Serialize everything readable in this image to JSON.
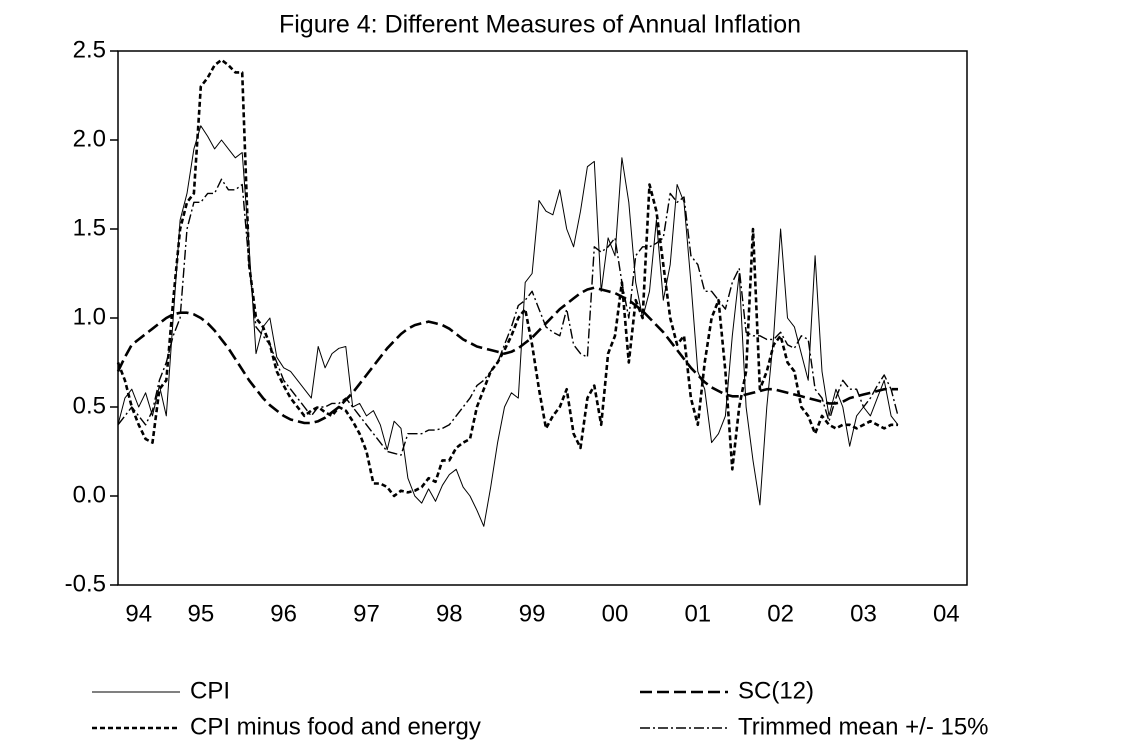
{
  "chart_data": {
    "type": "line",
    "title": "Figure 4: Different Measures of Annual Inflation",
    "categories": [
      null,
      null,
      null,
      "94",
      null,
      null,
      null,
      null,
      null,
      null,
      null,
      null,
      "95",
      null,
      null,
      null,
      null,
      null,
      null,
      null,
      null,
      null,
      null,
      null,
      "96",
      null,
      null,
      null,
      null,
      null,
      null,
      null,
      null,
      null,
      null,
      null,
      "97",
      null,
      null,
      null,
      null,
      null,
      null,
      null,
      null,
      null,
      null,
      null,
      "98",
      null,
      null,
      null,
      null,
      null,
      null,
      null,
      null,
      null,
      null,
      null,
      "99",
      null,
      null,
      null,
      null,
      null,
      null,
      null,
      null,
      null,
      null,
      null,
      "00",
      null,
      null,
      null,
      null,
      null,
      null,
      null,
      null,
      null,
      null,
      null,
      "01",
      null,
      null,
      null,
      null,
      null,
      null,
      null,
      null,
      null,
      null,
      null,
      "02",
      null,
      null,
      null,
      null,
      null,
      null,
      null,
      null,
      null,
      null,
      null,
      "03",
      null,
      null,
      null,
      null,
      null,
      null,
      null,
      null,
      null,
      null,
      null,
      "04",
      null,
      null,
      null
    ],
    "ylim": [
      -0.5,
      2.5
    ],
    "yticks": [
      -0.5,
      {
        "value": 0,
        "label": "0.0"
      },
      0.5,
      {
        "value": 1,
        "label": "1.0"
      },
      1.5,
      {
        "value": 2,
        "label": "2.0"
      },
      2.5
    ],
    "series": [
      {
        "name": "CPI",
        "color": "#000000",
        "style": "solid",
        "values": [
          0.4,
          0.55,
          0.6,
          0.5,
          0.58,
          0.45,
          0.62,
          0.45,
          1.0,
          1.55,
          1.7,
          1.95,
          2.08,
          2.02,
          1.95,
          2.0,
          1.95,
          1.9,
          1.93,
          1.4,
          0.8,
          0.95,
          1.0,
          0.78,
          0.72,
          0.7,
          0.65,
          0.6,
          0.55,
          0.84,
          0.72,
          0.8,
          0.83,
          0.84,
          0.5,
          0.52,
          0.45,
          0.48,
          0.4,
          0.26,
          0.42,
          0.38,
          0.1,
          0.0,
          -0.04,
          0.04,
          -0.03,
          0.06,
          0.12,
          0.15,
          0.05,
          0.0,
          -0.08,
          -0.17,
          0.05,
          0.3,
          0.5,
          0.58,
          0.55,
          1.2,
          1.25,
          1.66,
          1.6,
          1.58,
          1.72,
          1.5,
          1.4,
          1.6,
          1.85,
          1.88,
          1.15,
          1.45,
          1.35,
          1.9,
          1.65,
          1.2,
          1.0,
          1.15,
          1.55,
          1.1,
          1.3,
          1.75,
          1.65,
          1.2,
          0.7,
          0.6,
          0.3,
          0.35,
          0.45,
          0.9,
          1.25,
          0.5,
          0.2,
          -0.05,
          0.5,
          0.9,
          1.5,
          1.0,
          0.95,
          0.8,
          0.65,
          1.35,
          0.7,
          0.45,
          0.6,
          0.5,
          0.28,
          0.45,
          0.5,
          0.45,
          0.55,
          0.65,
          0.45,
          0.4,
          null,
          null,
          null,
          null,
          null,
          null,
          null,
          null,
          null,
          null
        ]
      },
      {
        "name": "SC(12)",
        "color": "#000000",
        "style": "long-dash",
        "values": [
          0.7,
          0.78,
          0.85,
          0.88,
          0.91,
          0.94,
          0.97,
          1.0,
          1.02,
          1.03,
          1.03,
          1.02,
          1.0,
          0.97,
          0.93,
          0.88,
          0.83,
          0.77,
          0.71,
          0.65,
          0.6,
          0.55,
          0.51,
          0.48,
          0.45,
          0.43,
          0.42,
          0.41,
          0.41,
          0.42,
          0.44,
          0.47,
          0.5,
          0.54,
          0.58,
          0.63,
          0.68,
          0.73,
          0.78,
          0.83,
          0.87,
          0.91,
          0.94,
          0.96,
          0.97,
          0.98,
          0.97,
          0.96,
          0.94,
          0.91,
          0.88,
          0.86,
          0.84,
          0.83,
          0.82,
          0.81,
          0.8,
          0.81,
          0.83,
          0.86,
          0.89,
          0.93,
          0.97,
          1.01,
          1.05,
          1.08,
          1.11,
          1.14,
          1.16,
          1.17,
          1.16,
          1.15,
          1.14,
          1.12,
          1.1,
          1.07,
          1.04,
          1.0,
          0.96,
          0.92,
          0.87,
          0.82,
          0.77,
          0.72,
          0.68,
          0.64,
          0.61,
          0.59,
          0.57,
          0.56,
          0.56,
          0.57,
          0.58,
          0.59,
          0.6,
          0.6,
          0.59,
          0.58,
          0.57,
          0.56,
          0.55,
          0.54,
          0.53,
          0.52,
          0.52,
          0.53,
          0.55,
          0.56,
          0.57,
          0.58,
          0.59,
          0.6,
          0.6,
          0.6,
          null,
          null,
          null,
          null,
          null,
          null,
          null,
          null,
          null,
          null
        ]
      },
      {
        "name": "CPI minus food and energy",
        "color": "#000000",
        "style": "short-dash",
        "values": [
          0.75,
          0.65,
          0.5,
          0.4,
          0.32,
          0.3,
          0.6,
          0.65,
          1.1,
          1.5,
          1.65,
          1.7,
          2.3,
          2.35,
          2.42,
          2.45,
          2.42,
          2.38,
          2.38,
          1.3,
          1.0,
          0.95,
          0.85,
          0.7,
          0.62,
          0.55,
          0.5,
          0.45,
          0.48,
          0.5,
          0.47,
          0.45,
          0.5,
          0.48,
          0.42,
          0.35,
          0.25,
          0.07,
          0.07,
          0.05,
          0.0,
          0.03,
          0.02,
          0.03,
          0.05,
          0.1,
          0.08,
          0.2,
          0.2,
          0.27,
          0.3,
          0.32,
          0.5,
          0.6,
          0.7,
          0.75,
          0.82,
          0.9,
          1.0,
          1.05,
          0.85,
          0.6,
          0.38,
          0.45,
          0.5,
          0.6,
          0.35,
          0.27,
          0.55,
          0.62,
          0.4,
          0.8,
          0.9,
          1.2,
          0.75,
          1.1,
          1.0,
          1.75,
          1.6,
          1.3,
          1.0,
          0.85,
          0.9,
          0.55,
          0.4,
          0.75,
          1.0,
          1.1,
          0.7,
          0.15,
          0.5,
          0.7,
          1.5,
          0.6,
          0.7,
          0.85,
          0.9,
          0.75,
          0.7,
          0.5,
          0.45,
          0.35,
          0.45,
          0.4,
          0.38,
          0.4,
          0.4,
          0.38,
          0.4,
          0.42,
          0.4,
          0.38,
          0.4,
          0.4,
          null,
          null,
          null,
          null,
          null,
          null,
          null,
          null,
          null,
          null
        ]
      },
      {
        "name": "Trimmed mean +/- 15%",
        "color": "#000000",
        "style": "dash-dot",
        "values": [
          0.4,
          0.45,
          0.5,
          0.45,
          0.4,
          0.48,
          0.65,
          0.75,
          0.9,
          1.0,
          1.5,
          1.65,
          1.65,
          1.7,
          1.7,
          1.78,
          1.72,
          1.72,
          1.75,
          1.3,
          0.95,
          0.9,
          0.85,
          0.75,
          0.65,
          0.6,
          0.55,
          0.5,
          0.45,
          0.5,
          0.5,
          0.52,
          0.52,
          0.55,
          0.5,
          0.45,
          0.4,
          0.35,
          0.3,
          0.25,
          0.24,
          0.23,
          0.35,
          0.35,
          0.35,
          0.37,
          0.37,
          0.38,
          0.4,
          0.45,
          0.5,
          0.55,
          0.62,
          0.65,
          0.7,
          0.75,
          0.85,
          0.95,
          1.07,
          1.1,
          1.15,
          1.05,
          0.95,
          0.92,
          0.9,
          1.05,
          0.85,
          0.8,
          0.78,
          1.4,
          1.37,
          1.4,
          1.45,
          1.2,
          1.0,
          1.35,
          1.4,
          1.4,
          1.42,
          1.45,
          1.7,
          1.65,
          1.68,
          1.35,
          1.3,
          1.15,
          1.15,
          1.1,
          1.05,
          1.2,
          1.28,
          0.92,
          0.9,
          0.9,
          0.88,
          0.88,
          0.92,
          0.85,
          0.83,
          0.9,
          0.88,
          0.6,
          0.55,
          0.42,
          0.55,
          0.65,
          0.6,
          0.6,
          0.5,
          0.55,
          0.62,
          0.68,
          0.6,
          0.45,
          null,
          null,
          null,
          null,
          null,
          null,
          null,
          null,
          null,
          null
        ]
      }
    ]
  }
}
